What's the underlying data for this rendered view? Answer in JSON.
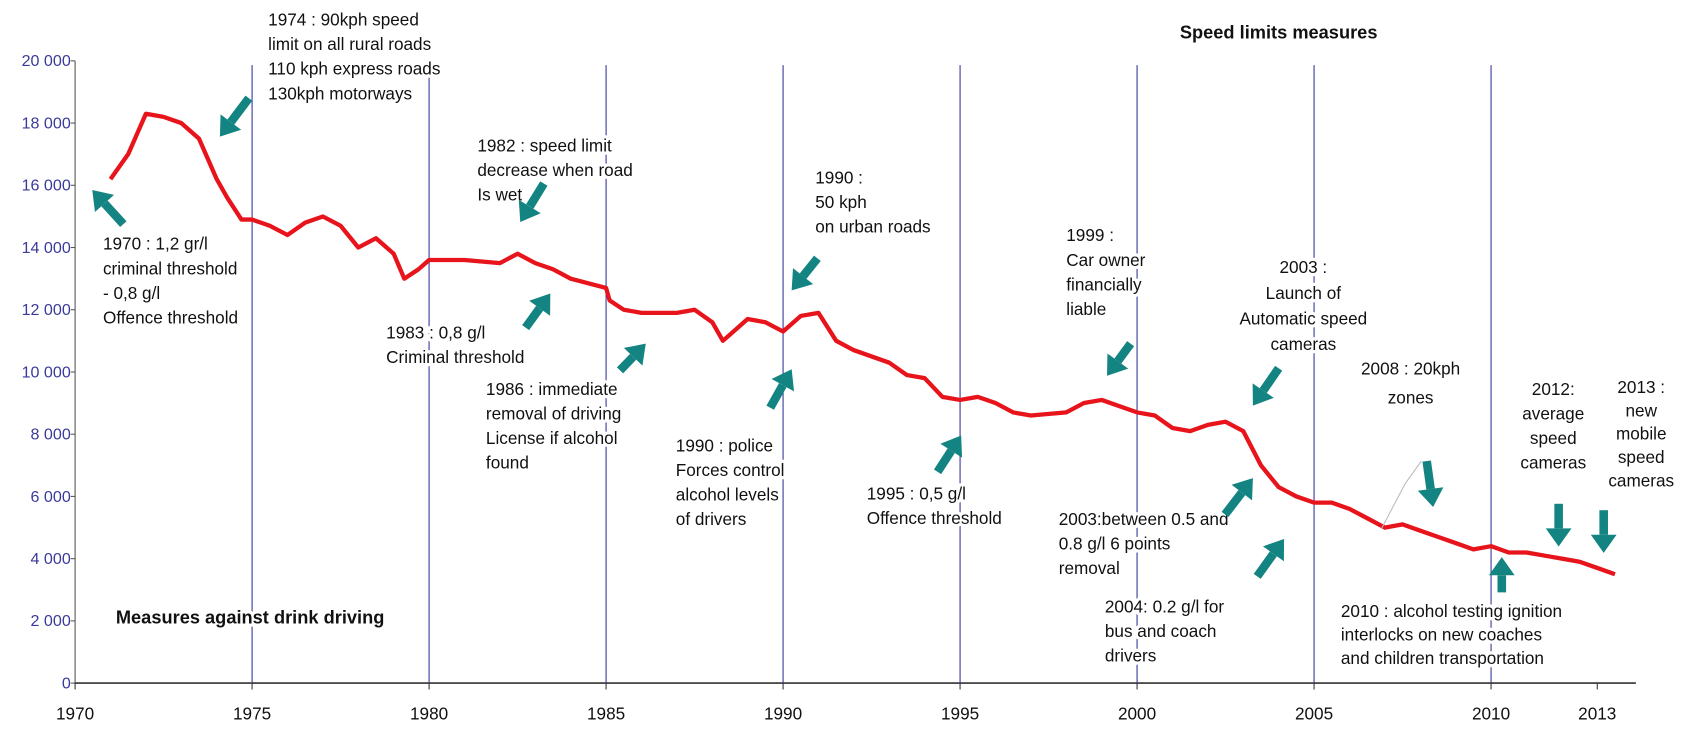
{
  "chart_data": {
    "type": "line",
    "headings": [
      "Speed limits measures",
      "Measures against drink driving"
    ],
    "series": [
      {
        "color": "#e8141c",
        "x": [
          1971.0,
          1971.5,
          1972.0,
          1972.5,
          1973.0,
          1973.5,
          1974.0,
          1974.3,
          1974.7,
          1975.0,
          1975.5,
          1976.0,
          1976.5,
          1977.0,
          1977.5,
          1978.0,
          1978.5,
          1979.0,
          1979.3,
          1979.7,
          1980.0,
          1981.0,
          1982.0,
          1982.5,
          1983.0,
          1983.5,
          1984.0,
          1985.0,
          1985.1,
          1985.5,
          1986.0,
          1987.0,
          1987.5,
          1988.0,
          1988.3,
          1989.0,
          1989.5,
          1990.0,
          1990.5,
          1991.0,
          1991.5,
          1992.0,
          1993.0,
          1993.5,
          1994.0,
          1994.5,
          1995.0,
          1995.5,
          1996.0,
          1996.5,
          1997.0,
          1998.0,
          1998.5,
          1999.0,
          2000.0,
          2000.5,
          2001.0,
          2001.5,
          2002.0,
          2002.5,
          2003.0,
          2003.5,
          2004.0,
          2004.5,
          2005.0,
          2005.5,
          2006.0,
          2006.5,
          2007.0,
          2007.5,
          2008.0,
          2008.5,
          2009.0,
          2009.5,
          2010.0,
          2010.5,
          2011.0,
          2011.5,
          2012.0,
          2012.5,
          2013.0,
          2013.5
        ],
        "values": [
          16200,
          17000,
          18300,
          18200,
          18000,
          17500,
          16200,
          15600,
          14900,
          14900,
          14700,
          14400,
          14800,
          15000,
          14700,
          14000,
          14300,
          13800,
          13000,
          13300,
          13600,
          13600,
          13500,
          13800,
          13500,
          13300,
          13000,
          12700,
          12300,
          12000,
          11900,
          11900,
          12000,
          11600,
          11000,
          11700,
          11600,
          11300,
          11800,
          11900,
          11000,
          10700,
          10300,
          9900,
          9800,
          9200,
          9100,
          9200,
          9000,
          8700,
          8600,
          8700,
          9000,
          9100,
          8700,
          8600,
          8200,
          8100,
          8300,
          8400,
          8100,
          7000,
          6300,
          6000,
          5800,
          5800,
          5600,
          5300,
          5000,
          5100,
          4900,
          4700,
          4500,
          4300,
          4400,
          4200,
          4200,
          4100,
          4000,
          3900,
          3700,
          3500
        ]
      }
    ],
    "xlim": [
      1970,
      2014
    ],
    "xticks": [
      1970,
      1975,
      1980,
      1985,
      1990,
      1995,
      2000,
      2005,
      2010,
      2013
    ],
    "ylim": [
      0,
      20000
    ],
    "yticks": [
      0,
      {
        "value": 2000,
        "label": "2 000"
      },
      {
        "value": 4000,
        "label": "4 000"
      },
      {
        "value": 6000,
        "label": "6 000"
      },
      {
        "value": 8000,
        "label": "8 000"
      },
      {
        "value": 10000,
        "label": "10 000"
      },
      {
        "value": 12000,
        "label": "12 000"
      },
      {
        "value": 14000,
        "label": "14 000"
      },
      {
        "value": 16000,
        "label": "16 000"
      },
      {
        "value": 18000,
        "label": "18 000"
      },
      {
        "value": 20000,
        "label": "20 000"
      }
    ],
    "grid": true,
    "annotations": [
      {
        "lines": [
          "1974 : 90kph speed",
          "limit on all rural roads",
          "110 kph express roads",
          "130kph motorways"
        ]
      },
      {
        "lines": [
          "1970 : 1,2 gr/l",
          "criminal threshold",
          "- 0,8 g/l",
          "Offence threshold"
        ]
      },
      {
        "lines": [
          "1982 : speed limit",
          "decrease when road",
          "Is wet"
        ]
      },
      {
        "lines": [
          "1983 : 0,8 g/l",
          "Criminal threshold"
        ]
      },
      {
        "lines": [
          "1986 : immediate",
          "removal of driving",
          "License if alcohol",
          "found"
        ]
      },
      {
        "lines": [
          "1990 :",
          "50 kph",
          "on urban roads"
        ]
      },
      {
        "lines": [
          "1990 : police",
          "Forces control",
          "alcohol levels",
          "of drivers"
        ]
      },
      {
        "lines": [
          "1995 : 0,5 g/l",
          "Offence threshold"
        ]
      },
      {
        "lines": [
          "1999 :",
          "Car owner",
          "financially",
          "liable"
        ]
      },
      {
        "lines": [
          "2003 :",
          "Launch of",
          "Automatic speed",
          "cameras"
        ]
      },
      {
        "lines": [
          "2003:between 0.5 and",
          "0.8 g/l  6 points",
          "removal"
        ]
      },
      {
        "lines": [
          "2004: 0.2 g/l  for",
          "bus and coach",
          "drivers"
        ]
      },
      {
        "lines": [
          "2008 : 20kph",
          "zones"
        ]
      },
      {
        "lines": [
          "2010 : alcohol testing ignition",
          "interlocks on new coaches",
          "and children transportation"
        ]
      },
      {
        "lines": [
          "2012:",
          "average",
          "speed",
          "cameras"
        ]
      },
      {
        "lines": [
          "2013 :",
          "new",
          "mobile",
          "speed",
          "cameras"
        ]
      }
    ]
  }
}
